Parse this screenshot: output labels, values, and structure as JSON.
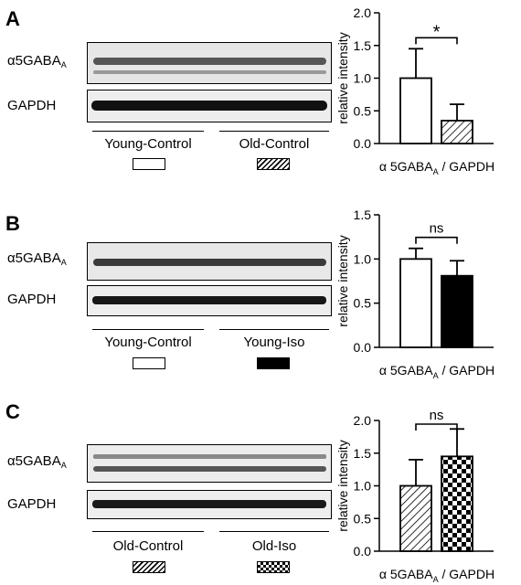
{
  "panels": [
    {
      "letter": "A",
      "row_labels": {
        "target": "α5GABA",
        "target_sub": "A",
        "loading": "GAPDH"
      },
      "groups": [
        {
          "label": "Young-Control",
          "pattern": "white"
        },
        {
          "label": "Old-Control",
          "pattern": "hatch"
        }
      ]
    },
    {
      "letter": "B",
      "row_labels": {
        "target": "α5GABA",
        "target_sub": "A",
        "loading": "GAPDH"
      },
      "groups": [
        {
          "label": "Young-Control",
          "pattern": "white"
        },
        {
          "label": "Young-Iso",
          "pattern": "black"
        }
      ]
    },
    {
      "letter": "C",
      "row_labels": {
        "target": "α5GABA",
        "target_sub": "A",
        "loading": "GAPDH"
      },
      "groups": [
        {
          "label": "Old-Control",
          "pattern": "hatch"
        },
        {
          "label": "Old-Iso",
          "pattern": "checker"
        }
      ]
    }
  ],
  "chart_data": [
    {
      "type": "bar",
      "ylabel": "relative intensity",
      "xlabel": "α 5GABA",
      "xlabel_sub": "A",
      "xlabel_suffix": " / GAPDH",
      "ylim": [
        0,
        2.0
      ],
      "yticks": [
        "0.0",
        "0.5",
        "1.0",
        "1.5",
        "2.0"
      ],
      "series": [
        {
          "group": "Young-Control",
          "value": 1.0,
          "error": 0.45,
          "pattern": "white"
        },
        {
          "group": "Old-Control",
          "value": 0.35,
          "error": 0.25,
          "pattern": "hatch"
        }
      ],
      "significance": "*"
    },
    {
      "type": "bar",
      "ylabel": "relative intensity",
      "xlabel": "α 5GABA",
      "xlabel_sub": "A",
      "xlabel_suffix": " / GAPDH",
      "ylim": [
        0,
        1.5
      ],
      "yticks": [
        "0.0",
        "0.5",
        "1.0",
        "1.5"
      ],
      "series": [
        {
          "group": "Young-Control",
          "value": 1.0,
          "error": 0.12,
          "pattern": "white"
        },
        {
          "group": "Young-Iso",
          "value": 0.81,
          "error": 0.17,
          "pattern": "black"
        }
      ],
      "significance": "ns"
    },
    {
      "type": "bar",
      "ylabel": "relative intensity",
      "xlabel": "α 5GABA",
      "xlabel_sub": "A",
      "xlabel_suffix": " / GAPDH",
      "ylim": [
        0,
        2.0
      ],
      "yticks": [
        "0.0",
        "0.5",
        "1.0",
        "1.5",
        "2.0"
      ],
      "series": [
        {
          "group": "Old-Control",
          "value": 1.0,
          "error": 0.4,
          "pattern": "hatch"
        },
        {
          "group": "Old-Iso",
          "value": 1.45,
          "error": 0.42,
          "pattern": "checker"
        }
      ],
      "significance": "ns"
    }
  ]
}
